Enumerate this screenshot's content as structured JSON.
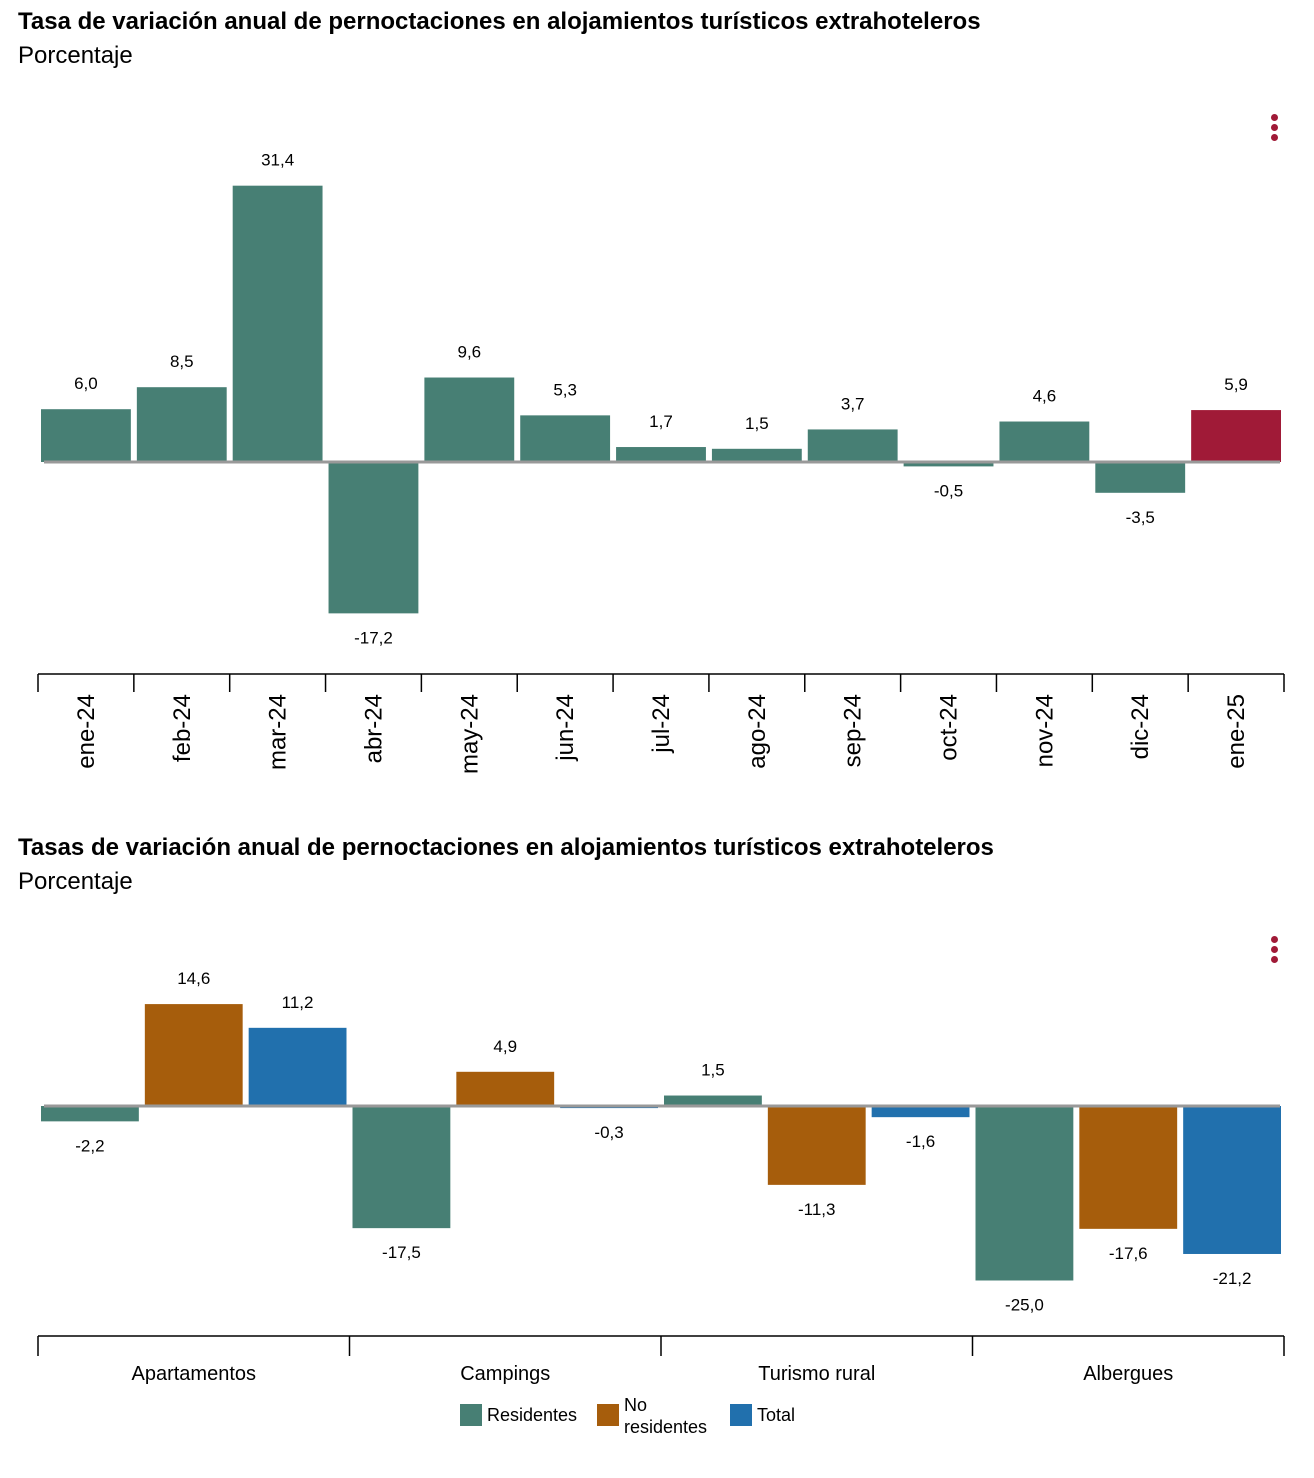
{
  "colors": {
    "residentes": "#477f74",
    "no_residentes": "#a65d0c",
    "total": "#2170ad",
    "highlight": "#a01a37",
    "axis": "#999999",
    "menu": "#a01a37"
  },
  "chart1": {
    "title": "Tasa de variación anual de pernoctaciones en alojamientos turísticos extrahoteleros",
    "subtitle": "Porcentaje",
    "menu_icon": "more-vertical-icon"
  },
  "chart2": {
    "title": "Tasas de variación anual de pernoctaciones en alojamientos turísticos extrahoteleros",
    "subtitle": "Porcentaje",
    "menu_icon": "more-vertical-icon",
    "legend": [
      {
        "key": "residentes",
        "label": "Residentes"
      },
      {
        "key": "no_residentes",
        "label": "No residentes"
      },
      {
        "key": "total",
        "label": "Total"
      }
    ]
  },
  "chart_data": [
    {
      "type": "bar",
      "title": "Tasa de variación anual de pernoctaciones en alojamientos turísticos extrahoteleros",
      "subtitle": "Porcentaje",
      "categories": [
        "ene-24",
        "feb-24",
        "mar-24",
        "abr-24",
        "may-24",
        "jun-24",
        "jul-24",
        "ago-24",
        "sep-24",
        "oct-24",
        "nov-24",
        "dic-24",
        "ene-25"
      ],
      "values": [
        6.0,
        8.5,
        31.4,
        -17.2,
        9.6,
        5.3,
        1.7,
        1.5,
        3.7,
        -0.5,
        4.6,
        -3.5,
        5.9
      ],
      "labels": [
        "6,0",
        "8,5",
        "31,4",
        "-17,2",
        "9,6",
        "5,3",
        "1,7",
        "1,5",
        "3,7",
        "-0,5",
        "4,6",
        "-3,5",
        "5,9"
      ],
      "highlight_index": 12,
      "legend": "none",
      "grid": false
    },
    {
      "type": "bar",
      "title": "Tasas de variación anual de pernoctaciones en alojamientos turísticos extrahoteleros",
      "subtitle": "Porcentaje",
      "categories": [
        "Apartamentos",
        "Campings",
        "Turismo rural",
        "Albergues"
      ],
      "series": [
        {
          "name": "Residentes",
          "values": [
            -2.2,
            -17.5,
            1.5,
            -25.0
          ],
          "labels": [
            "-2,2",
            "-17,5",
            "1,5",
            "-25,0"
          ]
        },
        {
          "name": "No residentes",
          "values": [
            14.6,
            4.9,
            -11.3,
            -17.6
          ],
          "labels": [
            "14,6",
            "4,9",
            "-11,3",
            "-17,6"
          ]
        },
        {
          "name": "Total",
          "values": [
            11.2,
            -0.3,
            -1.6,
            -21.2
          ],
          "labels": [
            "11,2",
            "-0,3",
            "-1,6",
            "-21,2"
          ]
        }
      ],
      "legend": "bottom",
      "grid": false
    }
  ]
}
